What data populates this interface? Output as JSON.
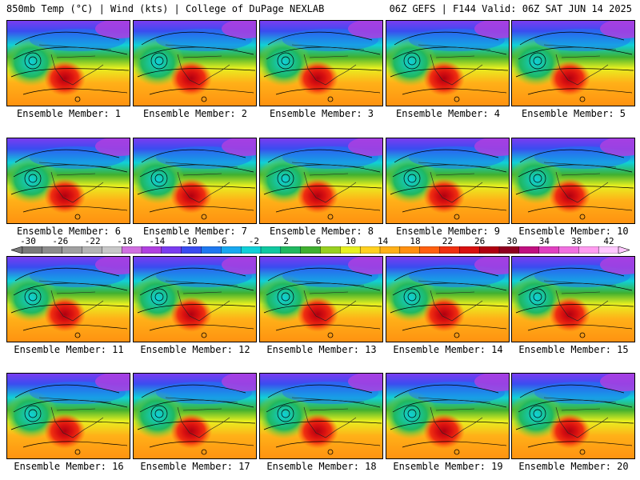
{
  "header": {
    "title_left": "850mb Temp (°C) | Wind (kts) | College of DuPage NEXLAB",
    "title_right": "06Z GEFS | F144 Valid: 06Z SAT JUN 14 2025"
  },
  "members": [
    "Ensemble Member: 1",
    "Ensemble Member: 2",
    "Ensemble Member: 3",
    "Ensemble Member: 4",
    "Ensemble Member: 5",
    "Ensemble Member: 6",
    "Ensemble Member: 7",
    "Ensemble Member: 8",
    "Ensemble Member: 9",
    "Ensemble Member: 10",
    "Ensemble Member: 11",
    "Ensemble Member: 12",
    "Ensemble Member: 13",
    "Ensemble Member: 14",
    "Ensemble Member: 15",
    "Ensemble Member: 16",
    "Ensemble Member: 17",
    "Ensemble Member: 18",
    "Ensemble Member: 19",
    "Ensemble Member: 20"
  ],
  "color_scale": {
    "labels": [
      "-30",
      "-26",
      "-22",
      "-18",
      "-14",
      "-10",
      "-6",
      "-2",
      "2",
      "6",
      "10",
      "14",
      "18",
      "22",
      "26",
      "30",
      "34",
      "38",
      "42"
    ],
    "colors": [
      "#7a7a7a",
      "#8c8c8c",
      "#a0a0a0",
      "#b4b4b4",
      "#c8c8c8",
      "#d070e0",
      "#b040e0",
      "#7a3cf0",
      "#3a4cf0",
      "#1e78f0",
      "#18a8f0",
      "#10d0d8",
      "#10c8a0",
      "#20b860",
      "#40b030",
      "#98d020",
      "#e8f020",
      "#ffd020",
      "#ffb018",
      "#ff9010",
      "#ff6010",
      "#f03010",
      "#d81010",
      "#b00010",
      "#900020",
      "#c01080",
      "#e040c0",
      "#f070e0",
      "#ff9cf0",
      "#ffc8ff"
    ]
  }
}
